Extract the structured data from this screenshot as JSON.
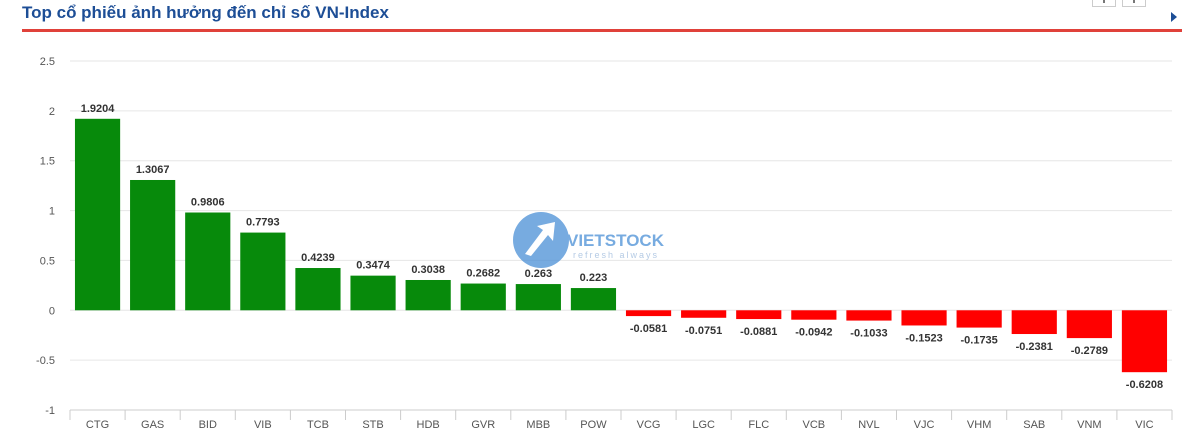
{
  "header": {
    "title": "Top cổ phiếu ảnh hưởng đến chỉ số VN-Index",
    "accent_color": "#e0413a",
    "title_color": "#1d4e96",
    "nav_icons": [
      "chevron-left-icon",
      "chevron-right-icon",
      "play-icon"
    ]
  },
  "watermark": {
    "brand": "VIETSTOCK",
    "tagline": "refresh always",
    "logo_icon": "vietstock-logo-icon"
  },
  "chart_data": {
    "type": "bar",
    "title": "",
    "xlabel": "",
    "ylabel": "",
    "ylim": [
      -1,
      2.5
    ],
    "yticks": [
      -1,
      -0.5,
      0,
      0.5,
      1,
      1.5,
      2,
      2.5
    ],
    "ytick_labels": [
      "-1",
      "-0.5",
      "0",
      "0.5",
      "1",
      "1.5",
      "2",
      "2.5"
    ],
    "grid": true,
    "positive_color": "#078a0b",
    "negative_color": "#ff0000",
    "categories": [
      "CTG",
      "GAS",
      "BID",
      "VIB",
      "TCB",
      "STB",
      "HDB",
      "GVR",
      "MBB",
      "POW",
      "VCG",
      "LGC",
      "FLC",
      "VCB",
      "NVL",
      "VJC",
      "VHM",
      "SAB",
      "VNM",
      "VIC"
    ],
    "values": [
      1.9204,
      1.3067,
      0.9806,
      0.7793,
      0.4239,
      0.3474,
      0.3038,
      0.2682,
      0.263,
      0.223,
      -0.0581,
      -0.0751,
      -0.0881,
      -0.0942,
      -0.1033,
      -0.1523,
      -0.1735,
      -0.2381,
      -0.2789,
      -0.6208
    ],
    "data_labels": [
      "1.9204",
      "1.3067",
      "0.9806",
      "0.7793",
      "0.4239",
      "0.3474",
      "0.3038",
      "0.2682",
      "0.263",
      "0.223",
      "-0.0581",
      "-0.0751",
      "-0.0881",
      "-0.0942",
      "-0.1033",
      "-0.1523",
      "-0.1735",
      "-0.2381",
      "-0.2789",
      "-0.6208"
    ]
  },
  "footer": {
    "text": ""
  }
}
